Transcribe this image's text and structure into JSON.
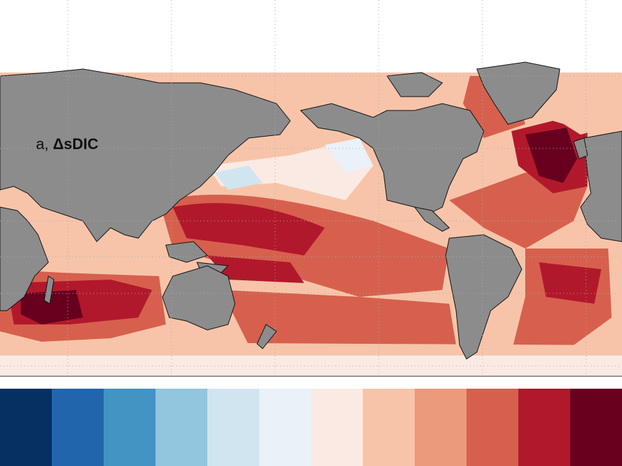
{
  "panel": {
    "letter": "a,",
    "variable": "ΔsDIC"
  },
  "colors": {
    "land": "#8c8c8c",
    "coast": "#111111",
    "ocean_base": "#e9957a",
    "grid": "#aaaaaa",
    "colorbar": [
      "#053061",
      "#2166ac",
      "#4393c3",
      "#92c5de",
      "#d1e5f0",
      "#eaf1f8",
      "#fbeae3",
      "#f7c4a9",
      "#ec9a7c",
      "#d6604d",
      "#b2182b",
      "#67001f"
    ]
  },
  "map": {
    "projection": "plate-carree",
    "central_longitude": "Pacific",
    "gridlines": "dotted"
  }
}
